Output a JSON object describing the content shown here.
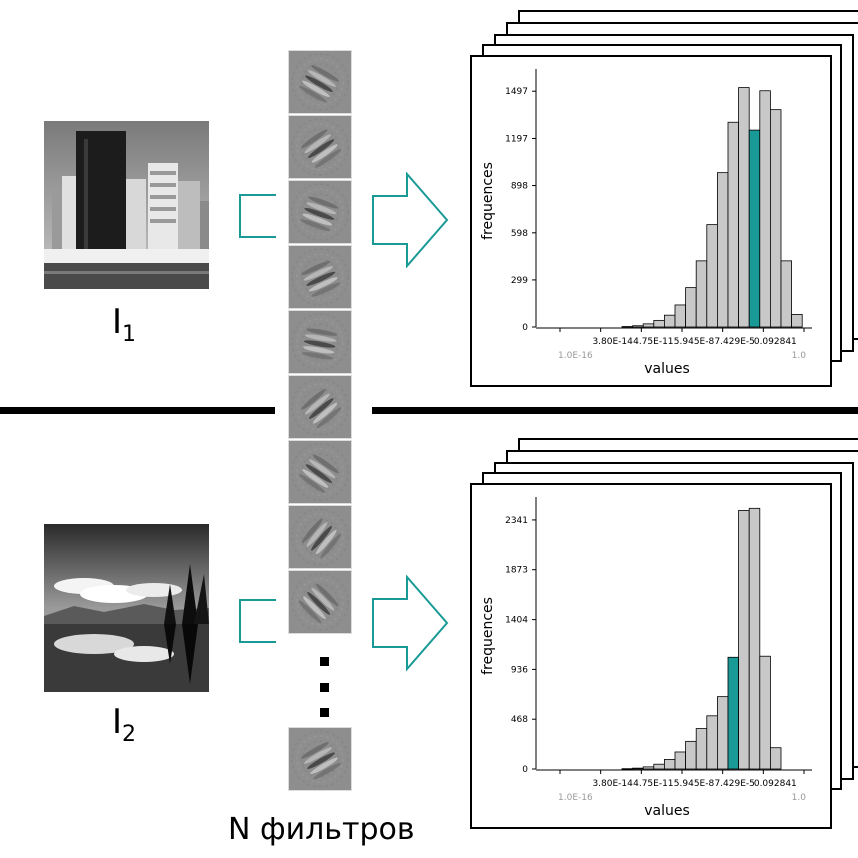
{
  "images": [
    {
      "name": "city",
      "label_main": "I",
      "label_sub": "1"
    },
    {
      "name": "lake",
      "label_main": "I",
      "label_sub": "2"
    }
  ],
  "caption": "N фильтров",
  "accent_color": "#1a9a96",
  "bar_color": "#c8c8c8",
  "filter_count_shown": 10,
  "chart_data": [
    {
      "type": "bar",
      "xlabel": "values",
      "ylabel": "frequences",
      "ylim": [
        0,
        1600
      ],
      "y_ticks": [
        0,
        299,
        598,
        898,
        1197,
        1497
      ],
      "x_tick_labels_top": [
        "3.80E-14",
        "4.75E-11",
        "5.945E-8",
        "7.429E-5",
        "0.092841"
      ],
      "x_tick_labels_bottom": [
        "1.0E-16",
        "1.0"
      ],
      "values": [
        3,
        8,
        20,
        42,
        75,
        140,
        250,
        420,
        650,
        980,
        1300,
        1520,
        1250,
        1500,
        1380,
        420,
        80
      ],
      "highlight_index": 12
    },
    {
      "type": "bar",
      "xlabel": "values",
      "ylabel": "frequences",
      "ylim": [
        0,
        2500
      ],
      "y_ticks": [
        0,
        468,
        936,
        1404,
        1873,
        2341
      ],
      "x_tick_labels_top": [
        "3.80E-14",
        "4.75E-11",
        "5.945E-8",
        "7.429E-5",
        "0.092841"
      ],
      "x_tick_labels_bottom": [
        "1.0E-16",
        "1.0"
      ],
      "values": [
        3,
        8,
        20,
        45,
        90,
        160,
        260,
        380,
        500,
        680,
        1050,
        2430,
        2450,
        1060,
        200
      ],
      "highlight_index": 10
    }
  ]
}
